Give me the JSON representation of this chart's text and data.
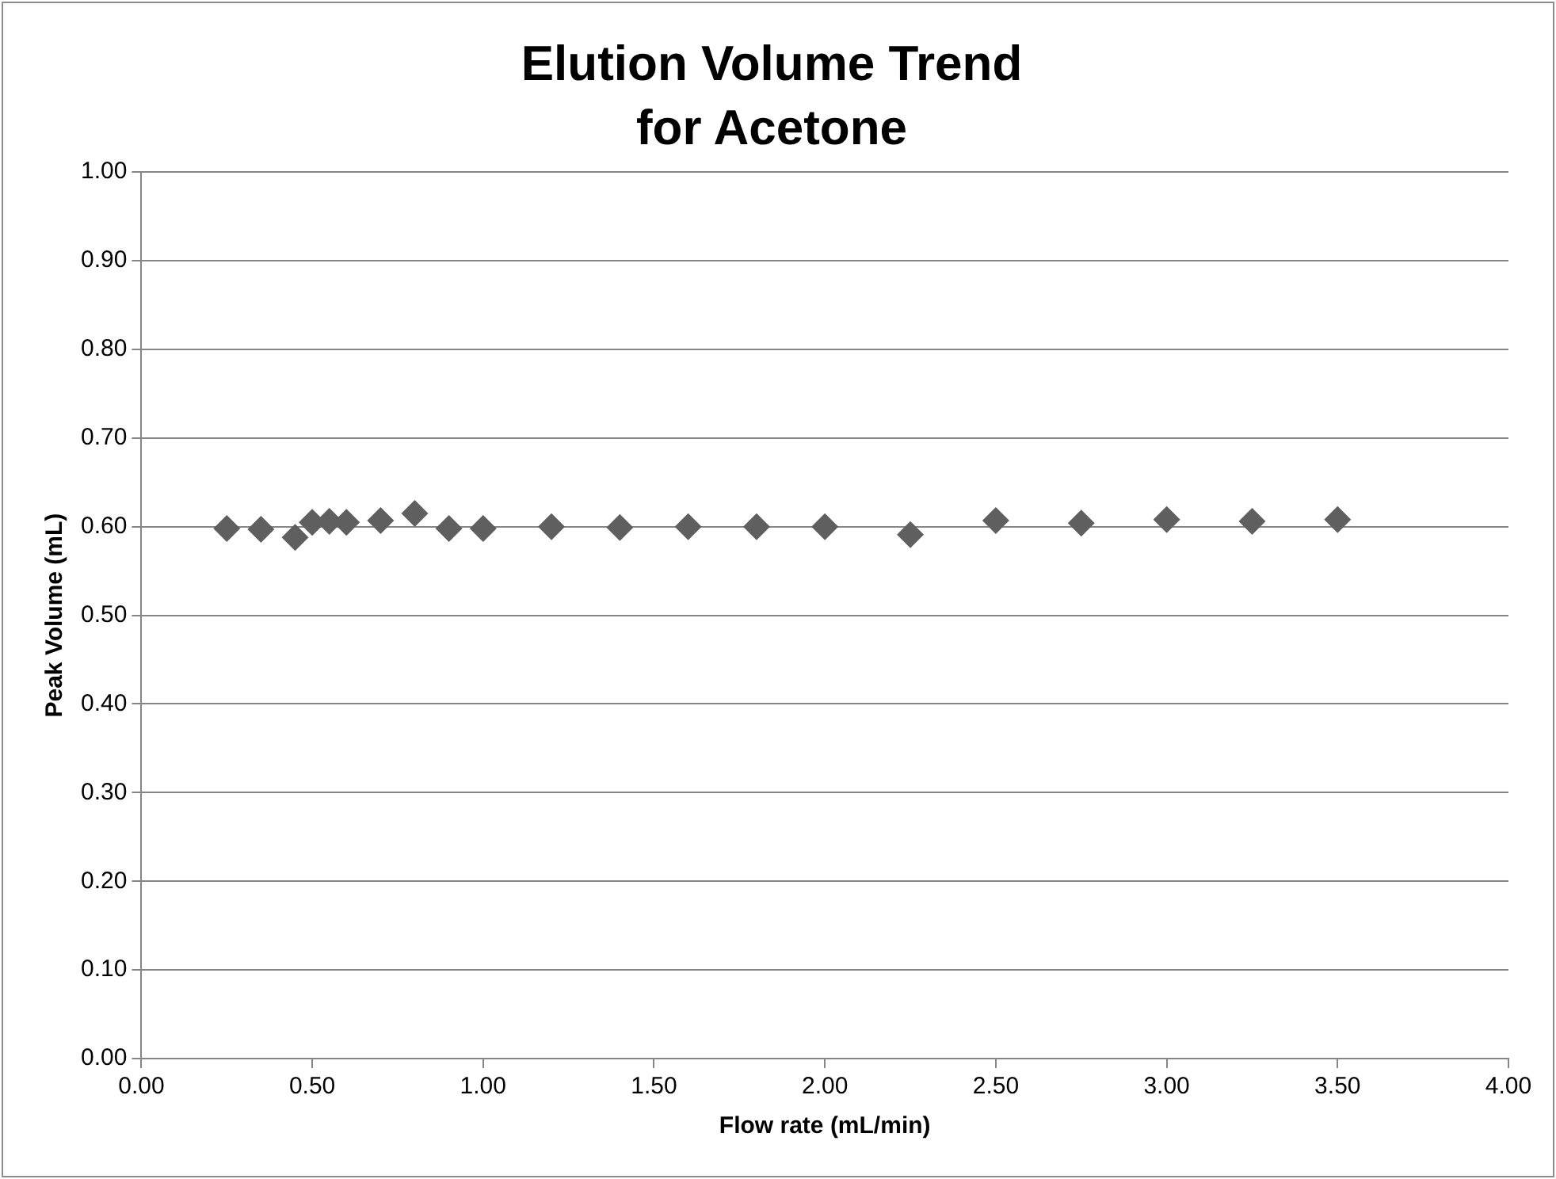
{
  "chart_data": {
    "type": "scatter",
    "title": [
      "Elution Volume Trend",
      "for Acetone"
    ],
    "xlabel": "Flow rate (mL/min)",
    "ylabel": "Peak Volume (mL)",
    "x": [
      0.25,
      0.35,
      0.45,
      0.5,
      0.55,
      0.6,
      0.7,
      0.8,
      0.9,
      1.0,
      1.2,
      1.4,
      1.6,
      1.8,
      2.0,
      2.25,
      2.5,
      2.75,
      3.0,
      3.25,
      3.5
    ],
    "series": [
      {
        "color": "#5f5f5f",
        "values": [
          0.598,
          0.597,
          0.588,
          0.605,
          0.606,
          0.605,
          0.607,
          0.615,
          0.598,
          0.598,
          0.6,
          0.599,
          0.6,
          0.6,
          0.6,
          0.591,
          0.607,
          0.604,
          0.608,
          0.606,
          0.608
        ]
      }
    ],
    "xlim": [
      0,
      4
    ],
    "xticks": [
      {
        "value": 0,
        "label": "0.00"
      },
      {
        "value": 0.5,
        "label": "0.50"
      },
      {
        "value": 1,
        "label": "1.00"
      },
      {
        "value": 1.5,
        "label": "1.50"
      },
      {
        "value": 2,
        "label": "2.00"
      },
      {
        "value": 2.5,
        "label": "2.50"
      },
      {
        "value": 3,
        "label": "3.00"
      },
      {
        "value": 3.5,
        "label": "3.50"
      },
      {
        "value": 4,
        "label": "4.00"
      }
    ],
    "ylim": [
      0,
      1
    ],
    "yticks": [
      {
        "value": 0,
        "label": "0.00"
      },
      {
        "value": 0.1,
        "label": "0.10"
      },
      {
        "value": 0.2,
        "label": "0.20"
      },
      {
        "value": 0.3,
        "label": "0.30"
      },
      {
        "value": 0.4,
        "label": "0.40"
      },
      {
        "value": 0.5,
        "label": "0.50"
      },
      {
        "value": 0.6,
        "label": "0.60"
      },
      {
        "value": 0.7,
        "label": "0.70"
      },
      {
        "value": 0.8,
        "label": "0.80"
      },
      {
        "value": 0.9,
        "label": "0.90"
      },
      {
        "value": 1,
        "label": "1.00"
      }
    ],
    "grid": "y",
    "legend": false,
    "marker": "diamond"
  }
}
